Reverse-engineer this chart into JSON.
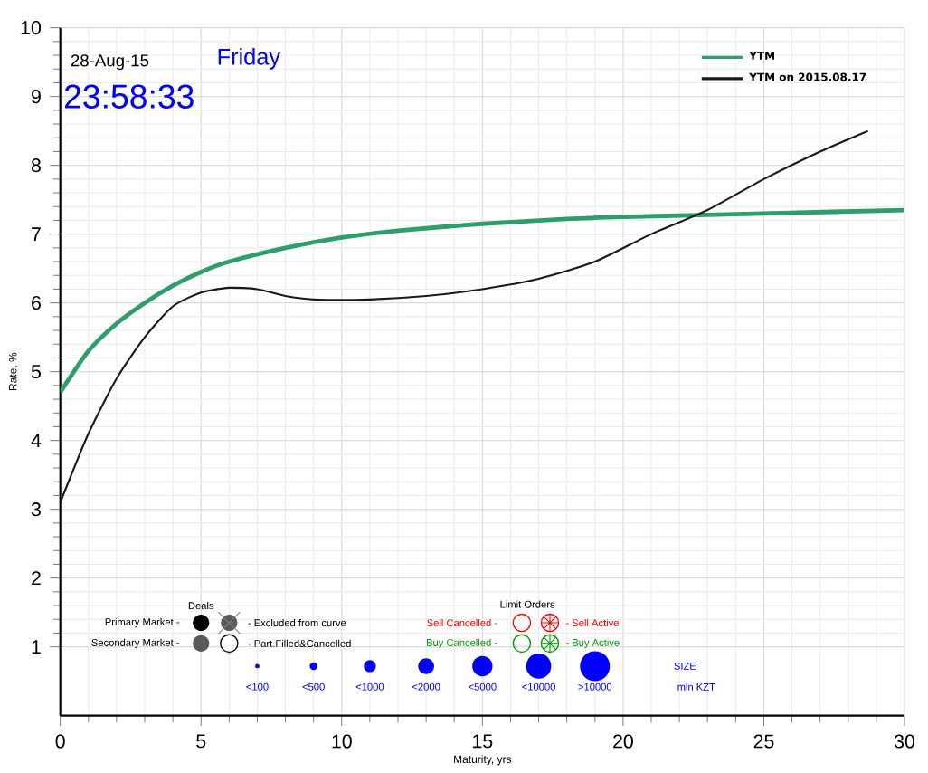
{
  "chart_data": {
    "type": "line",
    "xlabel": "Maturity, yrs",
    "ylabel": "Rate, %",
    "xlim": [
      0,
      30
    ],
    "xticks": [
      0,
      5,
      10,
      15,
      20,
      25,
      30
    ],
    "ylim": [
      0,
      10
    ],
    "yticks": [
      1,
      2,
      3,
      4,
      5,
      6,
      7,
      8,
      9,
      10
    ],
    "grid": true,
    "legend": "top right",
    "marker": "none",
    "line_style": "solid",
    "series": [
      {
        "name": "YTM",
        "color": "#2e9e6b",
        "x": [
          0,
          1,
          2,
          3,
          4,
          5,
          6,
          8,
          10,
          12,
          15,
          18,
          20,
          23,
          25,
          30
        ],
        "values": [
          4.7,
          5.3,
          5.7,
          6.0,
          6.25,
          6.45,
          6.6,
          6.8,
          6.95,
          7.05,
          7.15,
          7.22,
          7.25,
          7.28,
          7.3,
          7.35
        ]
      },
      {
        "name": "YTM on 2015.08.17",
        "color": "#1a1a1a",
        "x": [
          0,
          1,
          2,
          3,
          4,
          5,
          6,
          7,
          8,
          9,
          11,
          13,
          15,
          17,
          19,
          21,
          23,
          25,
          27,
          28.7
        ],
        "values": [
          3.1,
          4.1,
          4.9,
          5.5,
          5.95,
          6.15,
          6.22,
          6.2,
          6.1,
          6.05,
          6.05,
          6.1,
          6.2,
          6.35,
          6.6,
          7.0,
          7.35,
          7.8,
          8.2,
          8.5
        ]
      }
    ],
    "annotations": [
      "28-Aug-15",
      "Friday",
      "23:58:33",
      "Deals",
      "Primary Market -",
      "Secondary Market -",
      "- Excluded from curve",
      "- Part.Filled&Cancelled",
      "Limit Orders",
      "Sell Cancelled -",
      "Buy Cancelled -",
      "- Sell Active",
      "- Buy Active",
      "<100",
      "<500",
      "<1000",
      "<2000",
      "<5000",
      "<10000",
      ">10000",
      "SIZE",
      "mln KZT"
    ]
  }
}
